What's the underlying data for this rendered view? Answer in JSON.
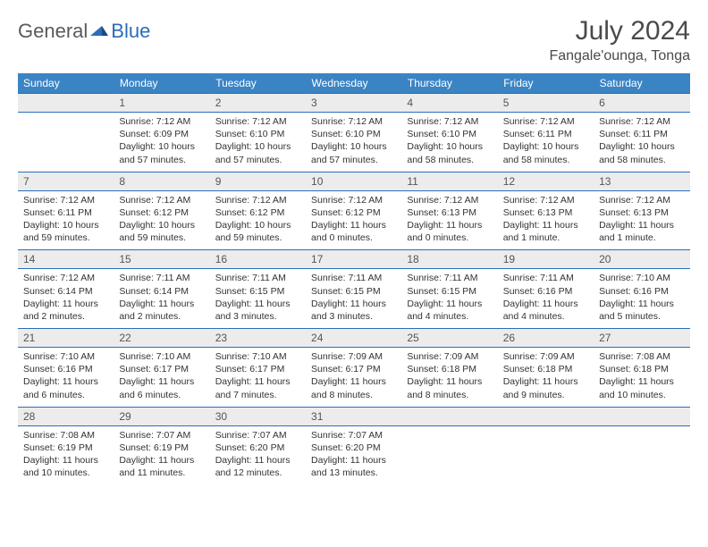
{
  "logo": {
    "text1": "General",
    "text2": "Blue"
  },
  "title": "July 2024",
  "location": "Fangale'ounga, Tonga",
  "colors": {
    "header_bg": "#3b84c4",
    "header_text": "#ffffff",
    "daynum_bg": "#ececec",
    "border": "#2a6db8",
    "logo_gray": "#5a5a5a",
    "logo_blue": "#2a6db8"
  },
  "weekdays": [
    "Sunday",
    "Monday",
    "Tuesday",
    "Wednesday",
    "Thursday",
    "Friday",
    "Saturday"
  ],
  "weeks": [
    [
      {
        "num": "",
        "sunrise": "",
        "sunset": "",
        "daylight": ""
      },
      {
        "num": "1",
        "sunrise": "7:12 AM",
        "sunset": "6:09 PM",
        "daylight": "10 hours and 57 minutes."
      },
      {
        "num": "2",
        "sunrise": "7:12 AM",
        "sunset": "6:10 PM",
        "daylight": "10 hours and 57 minutes."
      },
      {
        "num": "3",
        "sunrise": "7:12 AM",
        "sunset": "6:10 PM",
        "daylight": "10 hours and 57 minutes."
      },
      {
        "num": "4",
        "sunrise": "7:12 AM",
        "sunset": "6:10 PM",
        "daylight": "10 hours and 58 minutes."
      },
      {
        "num": "5",
        "sunrise": "7:12 AM",
        "sunset": "6:11 PM",
        "daylight": "10 hours and 58 minutes."
      },
      {
        "num": "6",
        "sunrise": "7:12 AM",
        "sunset": "6:11 PM",
        "daylight": "10 hours and 58 minutes."
      }
    ],
    [
      {
        "num": "7",
        "sunrise": "7:12 AM",
        "sunset": "6:11 PM",
        "daylight": "10 hours and 59 minutes."
      },
      {
        "num": "8",
        "sunrise": "7:12 AM",
        "sunset": "6:12 PM",
        "daylight": "10 hours and 59 minutes."
      },
      {
        "num": "9",
        "sunrise": "7:12 AM",
        "sunset": "6:12 PM",
        "daylight": "10 hours and 59 minutes."
      },
      {
        "num": "10",
        "sunrise": "7:12 AM",
        "sunset": "6:12 PM",
        "daylight": "11 hours and 0 minutes."
      },
      {
        "num": "11",
        "sunrise": "7:12 AM",
        "sunset": "6:13 PM",
        "daylight": "11 hours and 0 minutes."
      },
      {
        "num": "12",
        "sunrise": "7:12 AM",
        "sunset": "6:13 PM",
        "daylight": "11 hours and 1 minute."
      },
      {
        "num": "13",
        "sunrise": "7:12 AM",
        "sunset": "6:13 PM",
        "daylight": "11 hours and 1 minute."
      }
    ],
    [
      {
        "num": "14",
        "sunrise": "7:12 AM",
        "sunset": "6:14 PM",
        "daylight": "11 hours and 2 minutes."
      },
      {
        "num": "15",
        "sunrise": "7:11 AM",
        "sunset": "6:14 PM",
        "daylight": "11 hours and 2 minutes."
      },
      {
        "num": "16",
        "sunrise": "7:11 AM",
        "sunset": "6:15 PM",
        "daylight": "11 hours and 3 minutes."
      },
      {
        "num": "17",
        "sunrise": "7:11 AM",
        "sunset": "6:15 PM",
        "daylight": "11 hours and 3 minutes."
      },
      {
        "num": "18",
        "sunrise": "7:11 AM",
        "sunset": "6:15 PM",
        "daylight": "11 hours and 4 minutes."
      },
      {
        "num": "19",
        "sunrise": "7:11 AM",
        "sunset": "6:16 PM",
        "daylight": "11 hours and 4 minutes."
      },
      {
        "num": "20",
        "sunrise": "7:10 AM",
        "sunset": "6:16 PM",
        "daylight": "11 hours and 5 minutes."
      }
    ],
    [
      {
        "num": "21",
        "sunrise": "7:10 AM",
        "sunset": "6:16 PM",
        "daylight": "11 hours and 6 minutes."
      },
      {
        "num": "22",
        "sunrise": "7:10 AM",
        "sunset": "6:17 PM",
        "daylight": "11 hours and 6 minutes."
      },
      {
        "num": "23",
        "sunrise": "7:10 AM",
        "sunset": "6:17 PM",
        "daylight": "11 hours and 7 minutes."
      },
      {
        "num": "24",
        "sunrise": "7:09 AM",
        "sunset": "6:17 PM",
        "daylight": "11 hours and 8 minutes."
      },
      {
        "num": "25",
        "sunrise": "7:09 AM",
        "sunset": "6:18 PM",
        "daylight": "11 hours and 8 minutes."
      },
      {
        "num": "26",
        "sunrise": "7:09 AM",
        "sunset": "6:18 PM",
        "daylight": "11 hours and 9 minutes."
      },
      {
        "num": "27",
        "sunrise": "7:08 AM",
        "sunset": "6:18 PM",
        "daylight": "11 hours and 10 minutes."
      }
    ],
    [
      {
        "num": "28",
        "sunrise": "7:08 AM",
        "sunset": "6:19 PM",
        "daylight": "11 hours and 10 minutes."
      },
      {
        "num": "29",
        "sunrise": "7:07 AM",
        "sunset": "6:19 PM",
        "daylight": "11 hours and 11 minutes."
      },
      {
        "num": "30",
        "sunrise": "7:07 AM",
        "sunset": "6:20 PM",
        "daylight": "11 hours and 12 minutes."
      },
      {
        "num": "31",
        "sunrise": "7:07 AM",
        "sunset": "6:20 PM",
        "daylight": "11 hours and 13 minutes."
      },
      {
        "num": "",
        "sunrise": "",
        "sunset": "",
        "daylight": ""
      },
      {
        "num": "",
        "sunrise": "",
        "sunset": "",
        "daylight": ""
      },
      {
        "num": "",
        "sunrise": "",
        "sunset": "",
        "daylight": ""
      }
    ]
  ],
  "labels": {
    "sunrise": "Sunrise:",
    "sunset": "Sunset:",
    "daylight": "Daylight:"
  }
}
